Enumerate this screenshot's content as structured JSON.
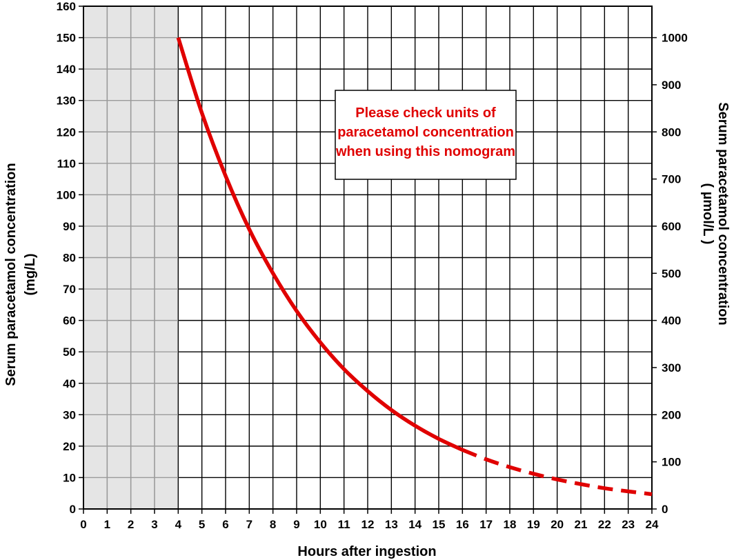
{
  "chart_data": {
    "type": "line",
    "xlabel": "Hours after ingestion",
    "ylabel_left": [
      "Serum paracetamol concentration",
      "(mg/L)"
    ],
    "ylabel_right": [
      "Serum paracetamol concentration",
      "( µmol/L )"
    ],
    "xlim": [
      0,
      24
    ],
    "ylim_left": [
      0,
      160
    ],
    "ylim_right_ticks": [
      0,
      100,
      200,
      300,
      400,
      500,
      600,
      700,
      800,
      900,
      1000
    ],
    "x_ticks": [
      0,
      1,
      2,
      3,
      4,
      5,
      6,
      7,
      8,
      9,
      10,
      11,
      12,
      13,
      14,
      15,
      16,
      17,
      18,
      19,
      20,
      21,
      22,
      23,
      24
    ],
    "y_ticks_left": [
      0,
      10,
      20,
      30,
      40,
      50,
      60,
      70,
      80,
      90,
      100,
      110,
      120,
      130,
      140,
      150,
      160
    ],
    "grid": true,
    "shaded_region_x": [
      0,
      4
    ],
    "annotation": [
      "Please check units of",
      "paracetamol concentration",
      "when using this nomogram"
    ],
    "series": [
      {
        "style": "solid",
        "color": "#e00000",
        "x": [
          4,
          5,
          6,
          7,
          8,
          9,
          10,
          11,
          12,
          13,
          14,
          15,
          16
        ],
        "y": [
          150,
          126,
          106,
          89,
          75,
          63,
          53,
          44.5,
          37.5,
          31.5,
          26.5,
          22.3,
          18.8
        ]
      },
      {
        "style": "dashed",
        "color": "#e00000",
        "x": [
          16,
          17,
          18,
          19,
          20,
          21,
          22,
          23,
          24
        ],
        "y": [
          18.8,
          15.8,
          13.3,
          11.2,
          9.4,
          7.9,
          6.6,
          5.6,
          4.7
        ]
      }
    ]
  }
}
